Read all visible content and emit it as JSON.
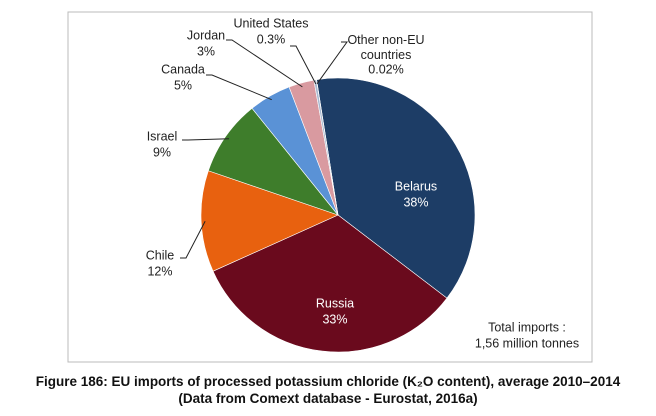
{
  "chart_data": {
    "type": "pie",
    "title": "Figure 186: EU imports of processed potassium chloride (K₂O content), average 2010–2014 (Data from Comext database - Eurostat, 2016a)",
    "categories": [
      "Belarus",
      "Russia",
      "Chile",
      "Israel",
      "Canada",
      "Jordan",
      "United States",
      "Other non-EU countries"
    ],
    "values": [
      38,
      33,
      12,
      9,
      5,
      3,
      0.3,
      0.02
    ],
    "value_labels": [
      "38%",
      "33%",
      "12%",
      "9%",
      "5%",
      "3%",
      "0.3%",
      "0.02%"
    ],
    "colors": [
      "#1d3d66",
      "#6a0a1d",
      "#e8610f",
      "#3e7d2b",
      "#5a92d6",
      "#d99aa0",
      "#a9b9d0",
      "#7a7a7a"
    ],
    "annotations": [
      "Total imports :",
      "1,56 million tonnes"
    ]
  }
}
